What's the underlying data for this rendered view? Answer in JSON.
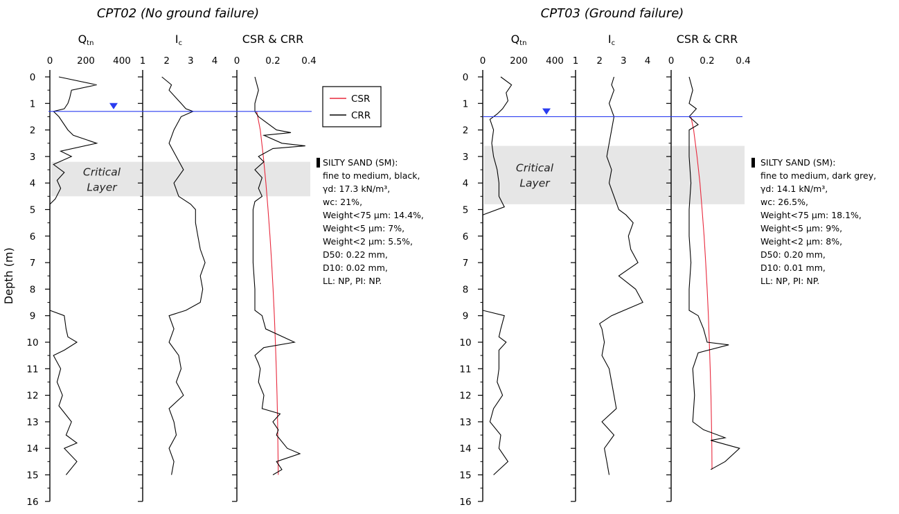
{
  "figure": {
    "ylabel": "Depth (m)",
    "depth_ticks": [
      "0",
      "1",
      "2",
      "3",
      "4",
      "5",
      "6",
      "7",
      "8",
      "9",
      "10",
      "11",
      "12",
      "13",
      "14",
      "15",
      "16"
    ],
    "panel_titles": [
      "Q",
      "I",
      "CSR & CRR"
    ],
    "panel_title_subs": [
      "tn",
      "c",
      ""
    ],
    "critical_layer_lines": [
      "Critical",
      "Layer"
    ],
    "legend": {
      "items": [
        {
          "name": "CSR",
          "color": "#e8283c"
        },
        {
          "name": "CRR",
          "color": "#000000"
        }
      ]
    },
    "colors": {
      "water_table": "#2a3cf0",
      "csr": "#e8283c",
      "crr": "#000000",
      "critical_band": "#e6e6e6"
    }
  },
  "chart_data": [
    {
      "type": "line",
      "title": "CPT02 (No ground failure)",
      "ylabel": "Depth (m)",
      "ylim": [
        16,
        0
      ],
      "water_table_depth": 1.3,
      "critical_layer_depth": [
        3.2,
        4.5
      ],
      "panels": [
        {
          "name": "Qtn",
          "xlim": [
            0,
            400
          ],
          "xticks": [
            "0",
            "200",
            "400"
          ],
          "series": [
            {
              "depth": [
                0,
                0.3,
                0.5,
                0.8,
                1.0,
                1.2,
                1.3,
                1.5,
                2.0,
                2.2,
                2.5,
                2.8,
                3.0,
                3.3,
                3.6,
                3.9,
                4.2,
                4.6,
                4.8,
                8.8,
                9.0,
                9.5,
                9.8,
                10.0,
                10.3,
                10.5,
                11.0,
                11.5,
                12.0,
                12.4,
                13.0,
                13.5,
                13.8,
                14.0,
                14.5,
                15.0
              ],
              "value": [
                50,
                260,
                120,
                110,
                100,
                80,
                20,
                50,
                100,
                130,
                260,
                60,
                120,
                20,
                80,
                40,
                60,
                30,
                0,
                0,
                80,
                90,
                100,
                150,
                80,
                20,
                60,
                40,
                70,
                50,
                120,
                90,
                150,
                80,
                150,
                90
              ]
            }
          ]
        },
        {
          "name": "Ic",
          "xlim": [
            1,
            4
          ],
          "xticks": [
            "1",
            "2",
            "3",
            "4"
          ],
          "series": [
            {
              "depth": [
                0,
                0.3,
                0.5,
                0.8,
                1.0,
                1.2,
                1.3,
                1.5,
                2.0,
                2.5,
                3.0,
                3.5,
                4.0,
                4.5,
                4.8,
                5.0,
                5.5,
                6.0,
                6.5,
                7.0,
                7.5,
                8.0,
                8.5,
                8.8,
                9.0,
                9.5,
                10.0,
                10.5,
                11.0,
                11.5,
                12.0,
                12.5,
                13.0,
                13.5,
                14.0,
                14.5,
                15.0
              ],
              "value": [
                1.8,
                2.2,
                2.1,
                2.4,
                2.6,
                2.8,
                3.1,
                2.6,
                2.3,
                2.1,
                2.4,
                2.7,
                2.3,
                2.5,
                3.0,
                3.2,
                3.2,
                3.3,
                3.4,
                3.6,
                3.4,
                3.5,
                3.4,
                2.8,
                2.1,
                2.3,
                2.1,
                2.5,
                2.6,
                2.4,
                2.7,
                2.1,
                2.3,
                2.4,
                2.1,
                2.3,
                2.2
              ]
            }
          ]
        },
        {
          "name": "CSR & CRR",
          "xlim": [
            0,
            0.4
          ],
          "xticks": [
            "0",
            "0.2",
            "0.4"
          ],
          "series": [
            {
              "name": "CSR",
              "depth": [
                1.3,
                2,
                3,
                4,
                5,
                6,
                7,
                8,
                9,
                10,
                11,
                12,
                13,
                14,
                15
              ],
              "value": [
                0.11,
                0.13,
                0.147,
                0.161,
                0.173,
                0.184,
                0.193,
                0.201,
                0.208,
                0.214,
                0.219,
                0.223,
                0.226,
                0.228,
                0.23
              ]
            },
            {
              "name": "CRR",
              "depth": [
                0,
                0.5,
                1.0,
                1.3,
                1.5,
                2.0,
                2.1,
                2.2,
                2.5,
                2.6,
                2.7,
                3.0,
                3.2,
                3.5,
                3.8,
                4.2,
                4.5,
                4.7,
                5.0,
                6.0,
                7.0,
                8.0,
                8.8,
                9.0,
                9.5,
                10.0,
                10.2,
                10.5,
                10.8,
                11.0,
                11.5,
                12.0,
                12.5,
                12.7,
                13.0,
                13.3,
                13.5,
                14.0,
                14.2,
                14.5,
                14.8,
                15.0
              ],
              "value": [
                0.1,
                0.12,
                0.1,
                0.1,
                0.12,
                0.22,
                0.3,
                0.15,
                0.25,
                0.38,
                0.2,
                0.12,
                0.15,
                0.1,
                0.14,
                0.12,
                0.14,
                0.1,
                0.09,
                0.09,
                0.09,
                0.1,
                0.1,
                0.14,
                0.16,
                0.32,
                0.15,
                0.1,
                0.12,
                0.13,
                0.12,
                0.15,
                0.14,
                0.24,
                0.2,
                0.23,
                0.22,
                0.28,
                0.35,
                0.22,
                0.25,
                0.2
              ]
            }
          ]
        }
      ]
    },
    {
      "type": "line",
      "title": "CPT03 (Ground failure)",
      "ylabel": "Depth (m)",
      "ylim": [
        16,
        0
      ],
      "water_table_depth": 1.5,
      "critical_layer_depth": [
        2.6,
        4.8
      ],
      "panels": [
        {
          "name": "Qtn",
          "xlim": [
            0,
            400
          ],
          "xticks": [
            "0",
            "200",
            "400"
          ],
          "series": [
            {
              "depth": [
                0,
                0.3,
                0.6,
                0.9,
                1.2,
                1.4,
                1.6,
                2.0,
                2.5,
                3.0,
                3.5,
                4.0,
                4.5,
                4.9,
                5.2,
                8.8,
                9.0,
                9.5,
                9.8,
                10.0,
                10.3,
                11.0,
                11.5,
                12.0,
                12.5,
                13.0,
                13.5,
                14.0,
                14.5,
                15.0
              ],
              "value": [
                100,
                160,
                130,
                140,
                110,
                80,
                40,
                60,
                50,
                60,
                80,
                90,
                90,
                120,
                0,
                0,
                120,
                100,
                90,
                130,
                90,
                90,
                80,
                110,
                60,
                40,
                100,
                90,
                140,
                60
              ]
            }
          ]
        },
        {
          "name": "Ic",
          "xlim": [
            1,
            4
          ],
          "xticks": [
            "1",
            "2",
            "3",
            "4"
          ],
          "series": [
            {
              "depth": [
                0,
                0.3,
                0.5,
                1.0,
                1.5,
                2.0,
                2.5,
                3.0,
                3.5,
                4.0,
                4.5,
                5.0,
                5.2,
                5.5,
                6.0,
                6.5,
                7.0,
                7.5,
                8.0,
                8.5,
                9.0,
                9.3,
                9.5,
                10.0,
                10.5,
                11.0,
                11.5,
                12.0,
                12.5,
                13.0,
                13.5,
                14.0,
                14.5,
                15.0
              ],
              "value": [
                2.6,
                2.5,
                2.6,
                2.4,
                2.6,
                2.5,
                2.4,
                2.3,
                2.5,
                2.4,
                2.6,
                2.8,
                3.1,
                3.4,
                3.2,
                3.3,
                3.6,
                2.8,
                3.5,
                3.8,
                2.5,
                2.0,
                2.1,
                2.2,
                2.1,
                2.4,
                2.5,
                2.6,
                2.7,
                2.1,
                2.6,
                2.2,
                2.3,
                2.4
              ]
            }
          ]
        },
        {
          "name": "CSR & CRR",
          "xlim": [
            0,
            0.4
          ],
          "xticks": [
            "0",
            "0.2",
            "0.4"
          ],
          "series": [
            {
              "name": "CSR",
              "depth": [
                1.5,
                2,
                3,
                4,
                5,
                6,
                7,
                8,
                9,
                10,
                11,
                12,
                13,
                14,
                14.8
              ],
              "value": [
                0.11,
                0.125,
                0.144,
                0.16,
                0.172,
                0.183,
                0.192,
                0.2,
                0.207,
                0.212,
                0.217,
                0.221,
                0.224,
                0.226,
                0.227
              ]
            },
            {
              "name": "CRR",
              "depth": [
                0,
                0.5,
                1.0,
                1.2,
                1.5,
                1.8,
                2.0,
                3.0,
                4.0,
                5.0,
                6.0,
                7.0,
                8.0,
                8.8,
                9.0,
                9.5,
                10.0,
                10.1,
                10.4,
                11.0,
                12.0,
                13.0,
                13.3,
                13.6,
                13.7,
                14.0,
                14.5,
                14.8
              ],
              "value": [
                0.1,
                0.12,
                0.1,
                0.14,
                0.1,
                0.15,
                0.1,
                0.1,
                0.11,
                0.1,
                0.1,
                0.11,
                0.1,
                0.1,
                0.15,
                0.18,
                0.2,
                0.32,
                0.15,
                0.12,
                0.13,
                0.12,
                0.18,
                0.3,
                0.22,
                0.38,
                0.3,
                0.22
              ]
            }
          ]
        }
      ]
    }
  ],
  "soil_descriptions": [
    {
      "lines": [
        "SILTY SAND (SM):",
        "fine to medium, black,",
        "γd: 17.3 kN/m³,",
        "wc: 21%,",
        "Weight<75 μm: 14.4%,",
        "Weight<5 μm: 7%,",
        "Weight<2 μm: 5.5%,",
        "D50: 0.22 mm,",
        "D10: 0.02 mm,",
        "LL: NP, PI: NP."
      ]
    },
    {
      "lines": [
        "SILTY SAND (SM):",
        "fine to medium, dark grey,",
        "γd: 14.1 kN/m³,",
        "wc: 26.5%,",
        "Weight<75 μm: 18.1%,",
        "Weight<5 μm: 9%,",
        "Weight<2 μm: 8%,",
        "D50: 0.20 mm,",
        "D10: 0.01 mm,",
        "LL: NP, PI: NP."
      ]
    }
  ]
}
